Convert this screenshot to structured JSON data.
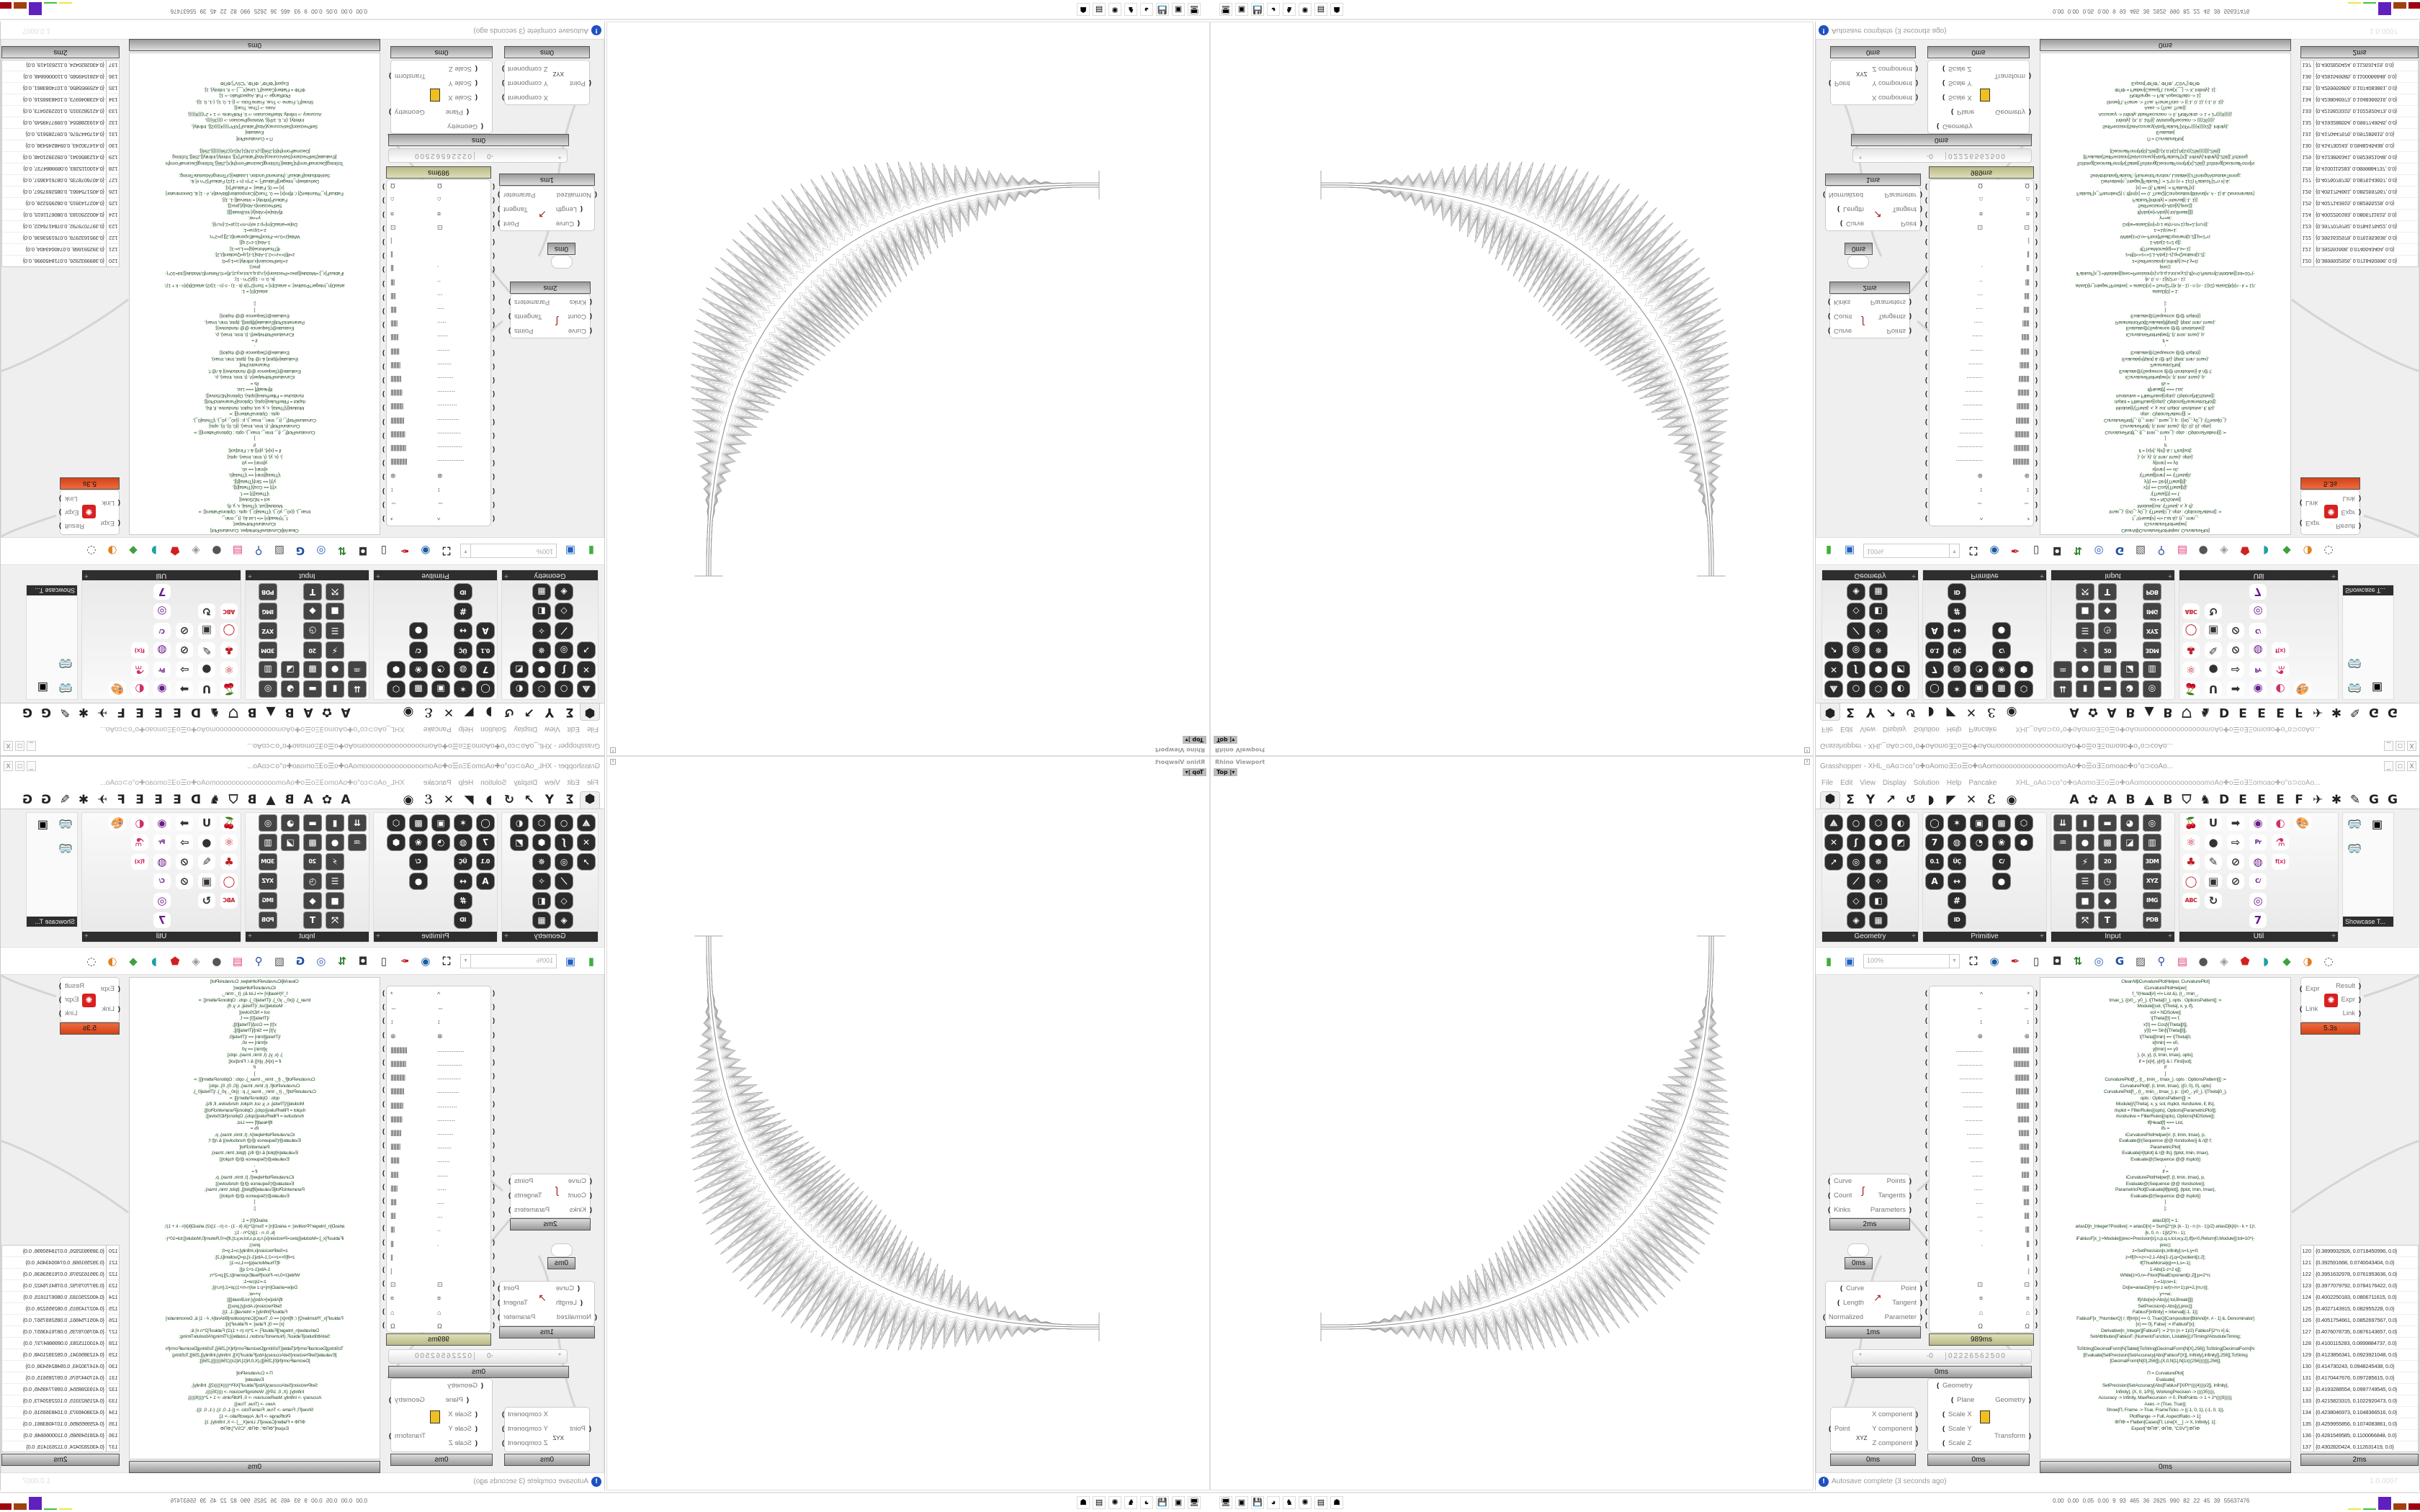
{
  "viewport": {
    "label": "Rhino Viewport",
    "view": "Top",
    "view_dropdown": "▾"
  },
  "gh": {
    "title": "Grasshopper - XHL_oAo⊃co°o✚oAomo∃Ξo☰o✚oAomooooooooooooooomoAo✚o☰o∃Ξomoao✚o°o⊃coAo...",
    "window_buttons": [
      "_",
      "□",
      "X"
    ],
    "menu": [
      "File",
      "Edit",
      "View",
      "Display",
      "Solution",
      "Help",
      "Pancake"
    ],
    "doc_name": "XHL_oAo⊃co°o✚oAomo∃Ξo☰o✚oAomooooooooooooooomoAo✚o☰o∃Ξomoao✚o°o⊃coAo...",
    "tabs": [
      "⬢",
      "Σ",
      "Y",
      "↗",
      "↺",
      "◗",
      "◤",
      "✕",
      "ℰ",
      "◉"
    ],
    "tabs_right": [
      "A",
      "✿",
      "A",
      "B",
      "▲",
      "B",
      "⛉",
      "♞",
      "D",
      "E",
      "E",
      "E",
      "F",
      "✈",
      "✱",
      "✎",
      "G",
      "G"
    ],
    "panels": [
      {
        "label": "Geometry",
        "cols": [
          [
            "⟁",
            "✕",
            "➚"
          ],
          [
            "○",
            "ʃ",
            "◎",
            "⟋",
            "◇",
            "◈"
          ],
          [
            "⬡",
            "⬢",
            "✵",
            "✧",
            "◧",
            "▦"
          ],
          [
            "◐",
            "◩"
          ]
        ]
      },
      {
        "label": "Primitive",
        "cols": [
          [
            "◯",
            "7",
            "0.1",
            "A"
          ],
          [
            "✶",
            "◍",
            "ÜÇ",
            "↔",
            "#",
            "ID"
          ],
          [
            "▣",
            "◔"
          ],
          [
            "▩",
            "❀",
            "C/",
            "●"
          ],
          [
            "⬡",
            "⬢"
          ]
        ]
      },
      {
        "label": "Input",
        "cols": [
          [
            "⇊",
            "♒"
          ],
          [
            "▮",
            "●",
            "⚡",
            "☰",
            "■",
            "⤧"
          ],
          [
            "▬",
            "▩",
            "20",
            "◷",
            "◆",
            "T"
          ],
          [
            "◕",
            "◪"
          ],
          [
            "◎",
            "▥",
            "3DM",
            "XYZ",
            "IMG",
            "PDB"
          ]
        ]
      },
      {
        "label": "Util",
        "cols": [
          [
            "🍒",
            "⚛",
            "♣",
            "◯",
            "ABC"
          ],
          [
            "U",
            "●",
            "✎",
            "▣",
            "↻"
          ],
          [
            "➡",
            "⇨",
            "⊘",
            "⊘"
          ],
          [
            "◉",
            "Pr",
            "◍",
            "C/",
            "◎",
            "7"
          ],
          [
            "◐",
            "⚗",
            "f(x)"
          ],
          [
            "🎨"
          ]
        ]
      }
    ],
    "showcase": {
      "label": "Showcase T...",
      "icons": [
        "🥽",
        "🥽",
        "▣"
      ]
    },
    "toolbar": {
      "zoom": "100%",
      "icons_left": [
        "new-file",
        "save"
      ],
      "icons": [
        {
          "name": "zoom-extents",
          "g": "⛶",
          "c": "#222"
        },
        {
          "name": "preview-eye",
          "g": "◉",
          "c": "#1a5aa0"
        },
        {
          "name": "sketch-pen",
          "g": "✒",
          "c": "#c02020"
        },
        {
          "name": "cluster",
          "g": "▯",
          "c": "#333"
        },
        {
          "name": "speaker",
          "g": "◘",
          "c": "#333"
        },
        {
          "name": "align-arrows",
          "g": "⇅",
          "c": "#2a7a2a"
        },
        {
          "name": "galapagos",
          "g": "◎",
          "c": "#3060c0"
        },
        {
          "name": "gha",
          "g": "G",
          "c": "#2050a0"
        },
        {
          "name": "canvas-image",
          "g": "▨",
          "c": "#555"
        },
        {
          "name": "search",
          "g": "⚲",
          "c": "#3050a0"
        },
        {
          "name": "package",
          "g": "▤",
          "c": "#e04080"
        },
        {
          "name": "sphere-gray",
          "g": "●",
          "c": "#555"
        },
        {
          "name": "dice",
          "g": "◈",
          "c": "#999"
        },
        {
          "name": "red-gem",
          "g": "⬟",
          "c": "#d02020"
        },
        {
          "name": "teal-shape",
          "g": "◗",
          "c": "#20a0a0"
        },
        {
          "name": "green-shape",
          "g": "◆",
          "c": "#40a040"
        },
        {
          "name": "orange-sphere",
          "g": "◑",
          "c": "#e08020"
        },
        {
          "name": "dotted-circle",
          "g": "◌",
          "c": "#444"
        }
      ]
    },
    "status": "Autosave complete (3 seconds ago)",
    "version": "1.0.0007",
    "components": {
      "mathematica": {
        "inputs": [
          "Expr",
          "Link"
        ],
        "outputs": [
          "Result",
          "Expr",
          "Link"
        ],
        "time": "5.3s"
      },
      "glyph_list": {
        "time": "989ms"
      },
      "divide": {
        "inputs": [
          "Curve",
          "Count",
          "Kinks"
        ],
        "outputs": [
          "Points",
          "Tangents",
          "Parameters"
        ],
        "time": "2ms"
      },
      "toggle": {
        "time": "0ms"
      },
      "evaluate": {
        "inputs": [
          "Curve",
          "Length",
          "Normalized"
        ],
        "outputs": [
          "Point",
          "Tangent",
          "Parameter"
        ],
        "time": "1ms"
      },
      "slider": {
        "prefix": "*",
        "value": "-0",
        "digits": "0 2 2 2 6 5 6 2 5 0 0",
        "time": "0ms"
      },
      "decon": {
        "inputs": [
          "Point"
        ],
        "outputs": [
          "X component",
          "Y component",
          "Z component"
        ],
        "time": "0ms"
      },
      "scale": {
        "inputs": [
          "Geometry",
          "Plane",
          "Scale X",
          "Scale Y",
          "Scale Z"
        ],
        "outputs": [
          "Geometry",
          "Transform"
        ],
        "time": "0ms"
      },
      "script": {
        "time": "0ms"
      },
      "data": {
        "time": "2ms"
      }
    },
    "glyph_rows": [
      [
        "^",
        "*"
      ],
      [
        "⇔",
        "⇔"
      ],
      [
        "↕",
        "↕"
      ],
      [
        "⊗",
        "⊗"
      ],
      [
        "...............",
        "|||||||||||||||||"
      ],
      [
        "..............",
        "||||||||||||||||"
      ],
      [
        ".............",
        "|||||||||||||||"
      ],
      [
        "............",
        "||||||||||||||"
      ],
      [
        "...........",
        "|||||||||||||"
      ],
      [
        "..........",
        "||||||||||||"
      ],
      [
        ".........",
        "|||||||||||"
      ],
      [
        "........",
        "||||||||||"
      ],
      [
        ".......",
        "|||||||||"
      ],
      [
        "......",
        "||||||||"
      ],
      [
        ".....",
        "|||||||"
      ],
      [
        "....",
        "||||||"
      ],
      [
        "...",
        "|||||"
      ],
      [
        "..",
        "||||"
      ],
      [
        ".",
        "|||"
      ],
      [
        "",
        "||"
      ],
      [
        "",
        "|"
      ],
      [
        "⊡",
        "⊡"
      ],
      [
        "¤",
        "¤"
      ],
      [
        "⌂",
        "⌂"
      ],
      [
        "Ω",
        "Ω"
      ]
    ],
    "script_lines": [
      "ClearAll[iCurvaturePlotHelper, CurvaturePlot]",
      "iCurvaturePlotHelper[",
      "f_?(Head[#] =!= List &), {t_, tmin_,",
      "tmax_}, {{x0_, y0_}, \\[Theta]0_}, opts : OptionsPattern[] :=",
      "Module[{sol, \\[Theta], x, y, if},",
      "sol = NDSolve[{",
      "\\[Theta]'[t] == f,",
      "x'[t] == Cos[\\[Theta][t]],",
      "y'[t] == Sin[\\[Theta][t]],",
      "\\[Theta][tmin] == \\[Theta]0,",
      "x[tmin] == x0,",
      "y[tmin] == y0",
      "}, {x, y}, {t, tmin, tmax}, opts];",
      "if = {x[#], y[#]} & /. First[sol];",
      "if",
      "]",
      "CurvaturePlot[f_, {t_, tmin_, tmax_}, opts : OptionsPattern[]] :=",
      "CurvaturePlot[f, {t, tmin, tmax}, {{0, 0}, 0}, opts]",
      "CurvaturePlot[f_, {t_, tmin_, tmax_}, p : {{x0_, y0_}, \\[Theta]0_},",
      "opts : OptionsPattern[]] :=",
      "Module[{\\[Theta], x, y, sol, rlsplot, rlsndsolve, if, ifs},",
      "rlsplot = FilterRules[{opts}, Options[ParametricPlot]];",
      "rlsndsolve = FilterRules[{opts}, Options[NDSolve]];",
      "If[Head[f] === List,",
      "ifs =",
      "iCurvaturePlotHelper[#, {t, tmin, tmax}, p,",
      "Evaluate@(Sequence @@ rlsndsolve)] & /@ f;",
      "ParametricPlot[",
      "Evaluate[#[tplot] & /@ ifs], {tplot, tmin, tmax},",
      "Evaluate@(Sequence @@ rlsplot)]",
      ",",
      "if =",
      "iCurvaturePlotHelper[f, {t, tmin, tmax}, p,",
      "Evaluate@(Sequence @@ rlsndsolve)];",
      "ParametricPlot[Evaluate[if[tplot]], {tplot, tmin, tmax},",
      "Evaluate@(Sequence @@ rlsplot)]",
      "]",
      "];",
      " ",
      "ariasD[0] = 1;",
      "ariasD[n_Integer?Positive] := ariasD[n] = Sum[2^((k (k - 1) - n (n - 1))/2) ariasD[k]/(n - k + 1)!,",
      "{k, 0, n - 1}]/(2^n - 1);",
      "iFabiusF[x_]:=Module[{prec=Precision[x],n,p,q,s,tol,w,y,z},If[x<0,Return[0,Module]];tol=10^(-",
      "prec);",
      "z=SetPrecision[x,Infinity];s=1;y=0;",
      "z=If[0<=z<=2,1-Abs[1-z],q=Quotient[z,2];",
      "If[ThueMorse[q]==1,s=-1];",
      "1-Abs[1-z+2 q]];",
      "While[z>0,n=-Floor[RealExponent[z,2]];p=2^n;",
      "z-=1/p;w=1;",
      "Do[w=ariasD[m]+p z w/(n-m+1);p/=2,{m,n}];",
      "y+=w;",
      "If[Abs[w]<Abs[y] tol,Break[]]];",
      "SetPrecision[s Abs[y],prec]];",
      "FabiusF[Infinity] = Interval[{-1, 1}];",
      "FabiusF[x_?NumberQ] /; If[Im[x] == 0, TrueQ[Composition[BitAnd[#, # - 1] &, Denominator]",
      "[x] == 0], False] := iFabiusF[x];",
      "Derivative[n_Integer][FabiusF] := 2^(n (n + 1)/2) FabiusF[2^n #] &;",
      "SetAttributes[FabiusF, {NumericFunction, Listable}];//Timing//AbsoluteTiming;",
      " ",
      "ToString[DecimalForm[N[Table[{ToString[DecimalForm[N[X],256]],ToString[DecimalForm[N",
      "[Evaluate[SetPrecision[SetAccuracy[Abs[FabiusF[X]], Infinity],Infinity]],256]],ToString",
      "[DecimalForm[N[0],256]]},{X,0,N[1],N[1/(((256))))]}],256]];",
      " ",
      "Π = CurvaturePlot[",
      "Evaluate[",
      "SetPrecision[SetAccuracy[Abs[FabiusF[X/Pi^((((4))))/2]], Infinity],",
      "Infinity], {X, 0, 1/Pi}], WorkingPrecision -> ((((35)))),",
      "Accuracy -> Infinity, MaxRecursion -> 0, PlotPoints -> 1 + 2^((((8))))],",
      "Axes -> {True, True}];",
      "Show[Π, Frame -> True, FrameTicks -> {{-1, 0, 1}, {-1, 0, 1}},",
      "PlotRange -> Full, AspectRatio -> 1];",
      "ΦΠΦ = Flatten[Cases[Π, Line[X__] -> X, Infinity], 1];",
      "Export[\"ΦΠΦ\", ΦΠΦ, \"CSV\"];ΦΠΦ"
    ],
    "data_rows": [
      [
        "120",
        "{0.3899932926, 0.0718450996, 0.0}"
      ],
      [
        "121",
        "{0.392591668, 0.0740043404, 0.0}"
      ],
      [
        "122",
        "{0.3951632978, 0.0761953636, 0.0}"
      ],
      [
        "123",
        "{0.3977079792, 0.0784176422, 0.0}"
      ],
      [
        "124",
        "{0.4002250183, 0.0806711615, 0.0}"
      ],
      [
        "125",
        "{0.4027143915, 0.082955228, 0.0}"
      ],
      [
        "126",
        "{0.4051754661, 0.0852697567, 0.0}"
      ],
      [
        "127",
        "{0.4076078735, 0.0876143657, 0.0}"
      ],
      [
        "128",
        "{0.4100115283, 0.0899884737, 0.0}"
      ],
      [
        "129",
        "{0.4123856341, 0.0923921048, 0.0}"
      ],
      [
        "130",
        "{0.414730243, 0.0948245438, 0.0}"
      ],
      [
        "131",
        "{0.4170447676, 0.097285615, 0.0}"
      ],
      [
        "132",
        "{0.4193288554, 0.0997749545, 0.0}"
      ],
      [
        "133",
        "{0.4215823315, 0.1022920473, 0.0}"
      ],
      [
        "134",
        "{0.4238046973, 0.1048366516, 0.0}"
      ],
      [
        "135",
        "{0.4259955856, 0.1074083861, 0.0}"
      ],
      [
        "136",
        "{0.4281549585, 0.1100066848, 0.0}"
      ],
      [
        "137",
        "{0.4302820424, 0.112631419, 0.0}"
      ]
    ]
  },
  "taskbar": {
    "icons": [
      {
        "name": "monitor",
        "g": "🖥"
      },
      {
        "name": "battery-app",
        "g": "▣"
      },
      {
        "name": "floppy-64",
        "g": "💾"
      },
      {
        "name": "firefox",
        "g": "◕"
      },
      {
        "name": "wolf",
        "g": "♞"
      },
      {
        "name": "wolfram",
        "g": "✺"
      },
      {
        "name": "notepad",
        "g": "▤"
      },
      {
        "name": "cat",
        "g": "☗"
      }
    ],
    "stats": "0.00 0.00 0.05 0.00 9 93 465 36 2625 990 82 22 45 39 55637476",
    "meter_colors": [
      "#e8e840",
      "#40c040",
      "#6020c0",
      "#a04010",
      "#a00010"
    ]
  },
  "colors": {
    "script_text": "#1e4a1e",
    "time_bar_slow": "#e0522a",
    "time_bar_medium": "#c8c89a",
    "fractal": "#999999"
  }
}
